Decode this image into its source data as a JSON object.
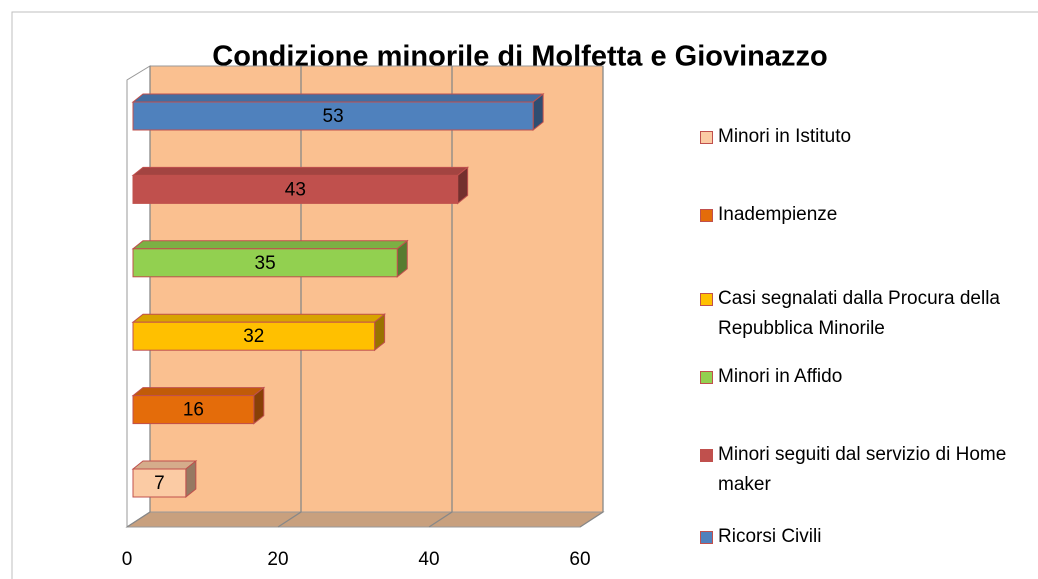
{
  "chart_data": {
    "type": "bar3d_horizontal",
    "title": "Condizione minorile di Molfetta e Giovinazzo",
    "categories": [
      "Minori in Istituto",
      "Inadempienze",
      "Casi segnalati dalla Procura della Repubblica Minorile",
      "Minori in Affido",
      "Minori seguiti dal servizio di Home maker",
      "Ricorsi Civili"
    ],
    "values": [
      7,
      16,
      32,
      35,
      43,
      53
    ],
    "colors": [
      "#fbcba4",
      "#e46c0a",
      "#ffc000",
      "#92d050",
      "#c0504d",
      "#4f81bd"
    ],
    "xlim": [
      0,
      60
    ],
    "xticks": [
      0,
      20,
      40,
      60
    ],
    "grid": true
  }
}
